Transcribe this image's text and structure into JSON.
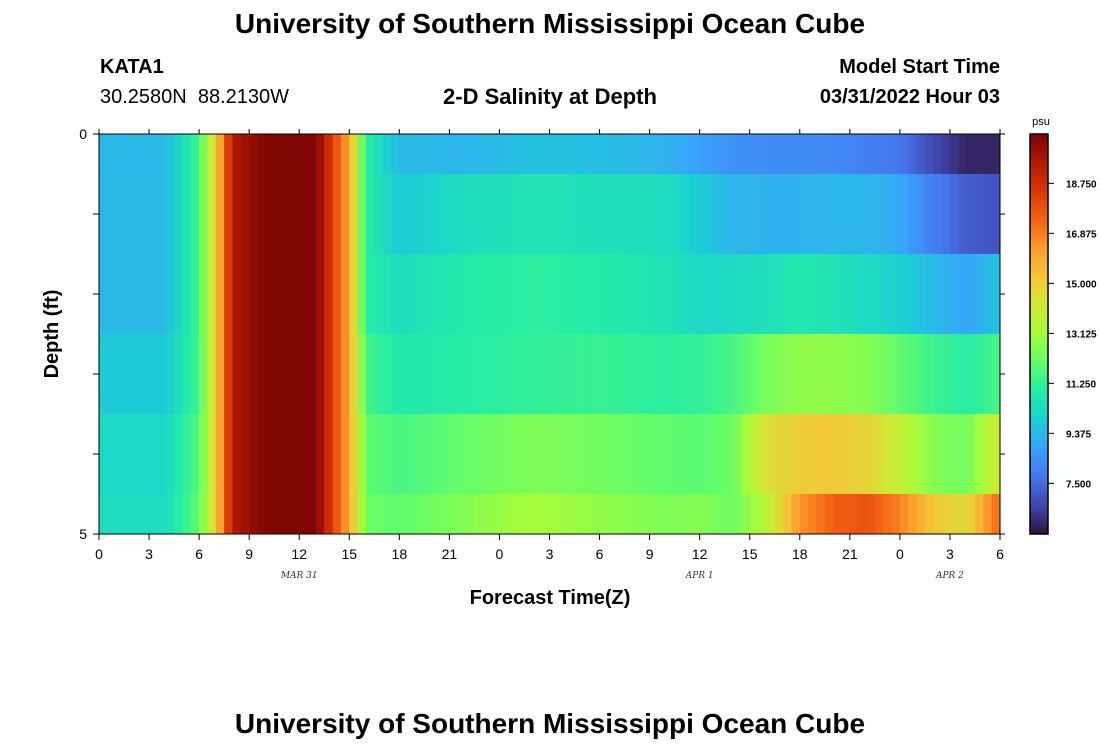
{
  "page": {
    "title": "University of Southern Mississippi Ocean Cube",
    "title_repeat": "University of Southern Mississippi Ocean Cube",
    "station": {
      "id": "KATA1",
      "lat": "30.2580N",
      "lon": "88.2130W"
    },
    "model_start": {
      "label": "Model Start Time",
      "value": "03/31/2022 Hour 03"
    }
  },
  "chart_data": {
    "type": "heatmap",
    "title": "2-D Salinity at Depth",
    "xlabel": "Forecast Time(Z)",
    "ylabel": "Depth (ft)",
    "ylim": [
      0,
      5
    ],
    "y_tick_labels": [
      "0",
      "5"
    ],
    "x_tick_labels": [
      "0",
      "3",
      "6",
      "9",
      "12",
      "15",
      "18",
      "21",
      "0",
      "3",
      "6",
      "9",
      "12",
      "15",
      "18",
      "21",
      "0",
      "3",
      "6"
    ],
    "x_hours": [
      0,
      3,
      6,
      9,
      12,
      15,
      18,
      21,
      24,
      27,
      30,
      33,
      36,
      39,
      42,
      45,
      48,
      51,
      54
    ],
    "date_labels": [
      {
        "label": "MAR 31",
        "hour": 12
      },
      {
        "label": "APR 1",
        "hour": 36
      },
      {
        "label": "APR 2",
        "hour": 51
      }
    ],
    "colorbar": {
      "unit": "psu",
      "min": 5.6,
      "max": 20.6,
      "tick_values": [
        7.5,
        9.375,
        11.25,
        13.125,
        15.0,
        16.875,
        18.75
      ],
      "tick_labels": [
        "7.500",
        "9.375",
        "11.250",
        "13.125",
        "15.000",
        "16.875",
        "18.750"
      ],
      "colors": [
        "#30123b",
        "#4145ab",
        "#4675ed",
        "#39a2fc",
        "#1bcfd4",
        "#24eca6",
        "#61fc6c",
        "#a4fc3b",
        "#d1e834",
        "#f3c63a",
        "#fe9b2d",
        "#f36315",
        "#d93806",
        "#b11901",
        "#7a0402"
      ]
    },
    "depth_bands": [
      "0-0.5 ft",
      "0.5-1.5 ft",
      "1.5-2.5 ft",
      "2.5-3.5 ft",
      "3.5-4.5 ft",
      "4.5-5 ft"
    ],
    "time_knots": [
      0,
      4,
      6,
      7,
      8,
      10,
      13,
      15,
      16,
      18,
      22,
      26,
      30,
      34,
      36,
      38,
      40,
      42,
      44,
      46,
      48,
      50,
      52,
      54
    ],
    "salinity_knots": [
      [
        9.3,
        9.4,
        11.5,
        15.0,
        19.5,
        20.5,
        20.5,
        16.0,
        11.0,
        9.4,
        9.3,
        9.6,
        9.5,
        9.2,
        8.8,
        8.4,
        8.3,
        8.3,
        8.2,
        8.0,
        7.8,
        6.8,
        6.0,
        6.0
      ],
      [
        9.4,
        9.4,
        11.5,
        15.0,
        19.5,
        20.5,
        20.5,
        16.0,
        11.0,
        9.8,
        10.4,
        10.6,
        10.5,
        10.4,
        9.8,
        9.3,
        9.2,
        9.2,
        9.3,
        9.3,
        9.0,
        8.0,
        7.2,
        7.0
      ],
      [
        9.4,
        9.4,
        11.5,
        15.0,
        19.5,
        20.5,
        20.5,
        16.0,
        11.0,
        10.4,
        10.9,
        11.1,
        10.9,
        10.6,
        10.2,
        10.3,
        10.5,
        10.8,
        10.6,
        10.3,
        10.0,
        9.4,
        8.9,
        9.6
      ],
      [
        9.8,
        9.8,
        11.5,
        15.0,
        19.5,
        20.5,
        20.5,
        16.0,
        11.5,
        10.8,
        11.0,
        11.2,
        11.3,
        11.1,
        11.2,
        11.6,
        12.4,
        12.8,
        12.8,
        12.6,
        12.0,
        11.4,
        11.0,
        11.6
      ],
      [
        10.2,
        10.2,
        11.8,
        15.0,
        19.5,
        20.5,
        20.5,
        16.0,
        12.0,
        11.6,
        12.1,
        12.5,
        12.3,
        12.0,
        11.9,
        12.2,
        14.5,
        15.0,
        15.2,
        14.8,
        13.8,
        12.6,
        12.3,
        14.2
      ],
      [
        10.4,
        10.4,
        12.0,
        15.0,
        19.5,
        20.5,
        20.5,
        16.0,
        12.2,
        12.0,
        12.6,
        13.2,
        12.8,
        12.5,
        12.6,
        12.2,
        13.5,
        16.4,
        17.5,
        17.8,
        16.8,
        15.2,
        14.6,
        17.4
      ]
    ]
  }
}
